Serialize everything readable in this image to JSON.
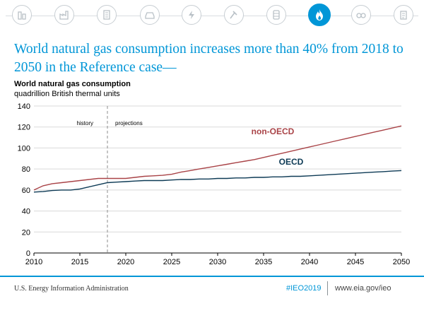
{
  "headline": "World natural gas consumption  increases more than 40% from 2018 to 2050 in the Reference case—",
  "icon_bar": {
    "icons": [
      "buildings-icon",
      "industry-icon",
      "commercial-icon",
      "car-icon",
      "electricity-icon",
      "coal-icon",
      "oil-barrel-icon",
      "natural-gas-flame-icon",
      "renewables-icon",
      "document-icon"
    ],
    "active": "natural-gas-flame-icon"
  },
  "colors": {
    "accent": "#0096d7",
    "non_oecd": "#a94347",
    "oecd": "#0d3a55",
    "axis": "#000000",
    "grid": "#d9d9d9"
  },
  "chart_data": {
    "type": "line",
    "title": "World natural gas consumption",
    "subtitle": "quadrillion British thermal units",
    "xlim": [
      2010,
      2050
    ],
    "ylim": [
      0,
      140
    ],
    "xticks": [
      2010,
      2015,
      2020,
      2025,
      2030,
      2035,
      2040,
      2045,
      2050
    ],
    "yticks": [
      0,
      20,
      40,
      60,
      80,
      100,
      120,
      140
    ],
    "grid": "horizontal",
    "divider_year": 2018,
    "region_labels": {
      "history": "history",
      "projections": "projections"
    },
    "x": [
      2010,
      2011,
      2012,
      2013,
      2014,
      2015,
      2016,
      2017,
      2018,
      2019,
      2020,
      2021,
      2022,
      2023,
      2024,
      2025,
      2026,
      2027,
      2028,
      2029,
      2030,
      2031,
      2032,
      2033,
      2034,
      2035,
      2036,
      2037,
      2038,
      2039,
      2040,
      2041,
      2042,
      2043,
      2044,
      2045,
      2046,
      2047,
      2048,
      2049,
      2050
    ],
    "series": [
      {
        "name": "non-OECD",
        "values": [
          60,
          64,
          66,
          67,
          68,
          69,
          70,
          71,
          71,
          71,
          71,
          72,
          73,
          73.5,
          74,
          75,
          77,
          78.5,
          80,
          81.5,
          83,
          84.5,
          86,
          87.5,
          89,
          91,
          93,
          95,
          97,
          99,
          101,
          103,
          105,
          107,
          109,
          111,
          113,
          115,
          117,
          119,
          121
        ]
      },
      {
        "name": "OECD",
        "values": [
          58,
          58.5,
          59.5,
          60,
          60,
          61,
          63,
          65,
          67,
          67.5,
          68,
          68.5,
          69,
          69,
          69,
          69.5,
          70,
          70,
          70.5,
          70.5,
          71,
          71,
          71.5,
          71.5,
          72,
          72,
          72.5,
          72.5,
          73,
          73,
          73.5,
          74,
          74.5,
          75,
          75.5,
          76,
          76.5,
          77,
          77.5,
          78,
          78.5
        ]
      }
    ]
  },
  "footer": {
    "source": "U.S. Energy Information Administration",
    "tag": "#IEO2019",
    "url": "www.eia.gov/ieo"
  }
}
